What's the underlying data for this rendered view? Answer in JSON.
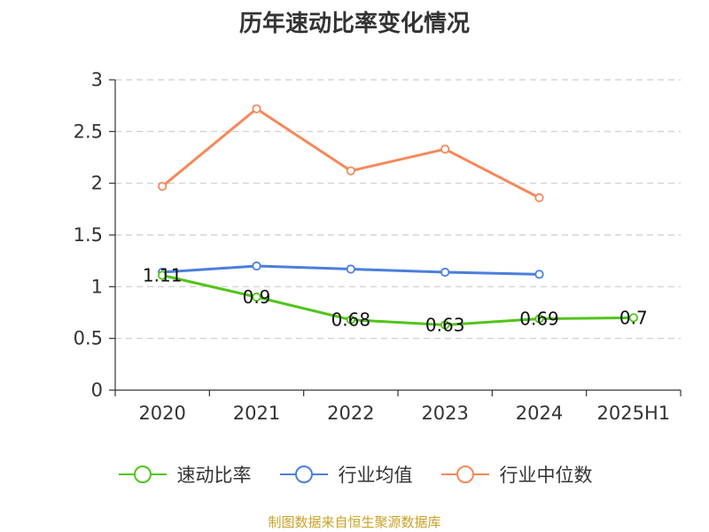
{
  "chart_data": {
    "type": "line",
    "title": "历年速动比率变化情况",
    "categories": [
      "2020",
      "2021",
      "2022",
      "2023",
      "2024",
      "2025H1"
    ],
    "ylim": [
      0,
      3
    ],
    "yticks": [
      "0",
      "0.5",
      "1",
      "1.5",
      "2",
      "2.5",
      "3"
    ],
    "grid": true,
    "legend_position": "bottom",
    "series": [
      {
        "name": "速动比率",
        "color": "#52c41a",
        "values": [
          1.11,
          0.9,
          0.68,
          0.63,
          0.69,
          0.7
        ],
        "labels": [
          "1.11",
          "0.9",
          "0.68",
          "0.63",
          "0.69",
          "0.7"
        ]
      },
      {
        "name": "行业均值",
        "color": "#4a7fdc",
        "values": [
          1.14,
          1.2,
          1.17,
          1.14,
          1.12,
          null
        ]
      },
      {
        "name": "行业中位数",
        "color": "#f5895a",
        "values": [
          1.97,
          2.72,
          2.12,
          2.33,
          1.86,
          null
        ]
      }
    ],
    "source": "制图数据来自恒生聚源数据库"
  }
}
